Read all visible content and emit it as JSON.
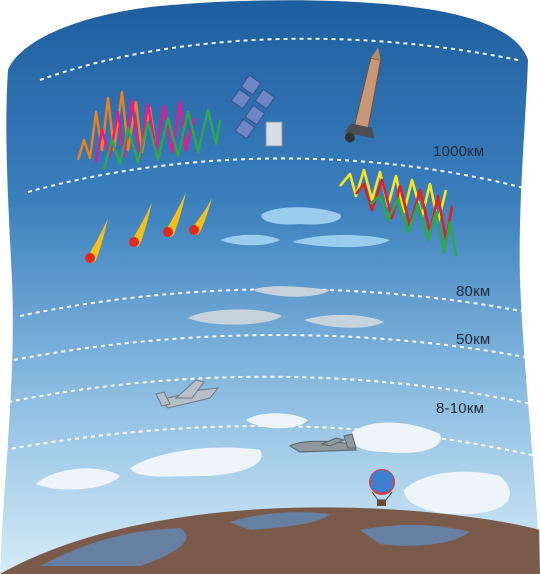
{
  "diagram": {
    "layers": [
      {
        "label": "1000км"
      },
      {
        "label": "80км"
      },
      {
        "label": "50км"
      },
      {
        "label": "8-10км"
      }
    ],
    "icons": [
      "aurora-icon",
      "satellite-icon",
      "rocket-icon",
      "meteor-icon",
      "cloud-icon",
      "jet-icon",
      "airplane-icon",
      "hot-air-balloon-icon",
      "earth-surface-icon"
    ],
    "colors": {
      "sky_top": "#1f5fa0",
      "sky_bottom": "#cfe6f6",
      "layer_line": "#ffffff",
      "earth": "#7a5a4a",
      "aurora_left": [
        "#f0801e",
        "#e01c90",
        "#2da84a"
      ],
      "aurora_right": [
        "#f5e61e",
        "#e02020",
        "#2da84a"
      ],
      "meteor": "#f5c018"
    }
  }
}
